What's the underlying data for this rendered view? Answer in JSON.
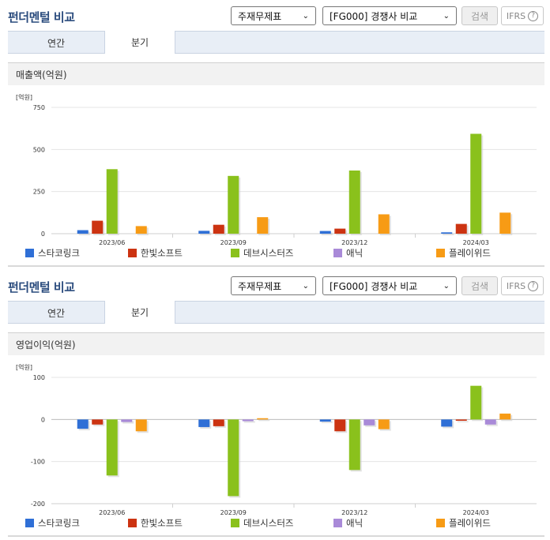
{
  "header": {
    "title": "펀더멘털 비교",
    "select1": "주재무제표",
    "select2": "[FG000] 경쟁사 비교",
    "search_label": "검색",
    "ifrs_label": "IFRS",
    "ifrs_help": "?"
  },
  "tabs": [
    "연간",
    "분기"
  ],
  "colors": [
    "#2f6fd6",
    "#cc3311",
    "#8ac11c",
    "#a98ad8",
    "#f79b15"
  ],
  "chart_data": [
    {
      "type": "bar",
      "title": "매출액(억원)",
      "ylabel": "[억원]",
      "ylim": [
        0,
        750
      ],
      "yticks": [
        0,
        250,
        500,
        750
      ],
      "categories": [
        "2023/06",
        "2023/09",
        "2023/12",
        "2024/03"
      ],
      "series": [
        {
          "name": "스타코링크",
          "values": [
            21,
            17,
            16,
            8
          ]
        },
        {
          "name": "한빛소프트",
          "values": [
            77,
            53,
            30,
            58
          ]
        },
        {
          "name": "데브시스터즈",
          "values": [
            383,
            343,
            375,
            593
          ]
        },
        {
          "name": "애닉",
          "values": [
            0,
            0,
            0,
            0
          ]
        },
        {
          "name": "플레이위드",
          "values": [
            45,
            98,
            115,
            125
          ]
        }
      ],
      "legend": "bottom"
    },
    {
      "type": "bar",
      "title": "영업이익(억원)",
      "ylabel": "[억원]",
      "ylim": [
        -200,
        100
      ],
      "yticks": [
        100,
        0,
        -100,
        -200
      ],
      "categories": [
        "2023/06",
        "2023/09",
        "2023/12",
        "2024/03"
      ],
      "series": [
        {
          "name": "스타코링크",
          "values": [
            -22,
            -18,
            -5,
            -17
          ]
        },
        {
          "name": "한빛소프트",
          "values": [
            -12,
            -16,
            -28,
            -3
          ]
        },
        {
          "name": "데브시스터즈",
          "values": [
            -133,
            -182,
            -120,
            80
          ]
        },
        {
          "name": "애닉",
          "values": [
            -6,
            -4,
            -14,
            -12
          ]
        },
        {
          "name": "플레이위드",
          "values": [
            -28,
            3,
            -23,
            14
          ]
        }
      ],
      "legend": "bottom"
    }
  ]
}
